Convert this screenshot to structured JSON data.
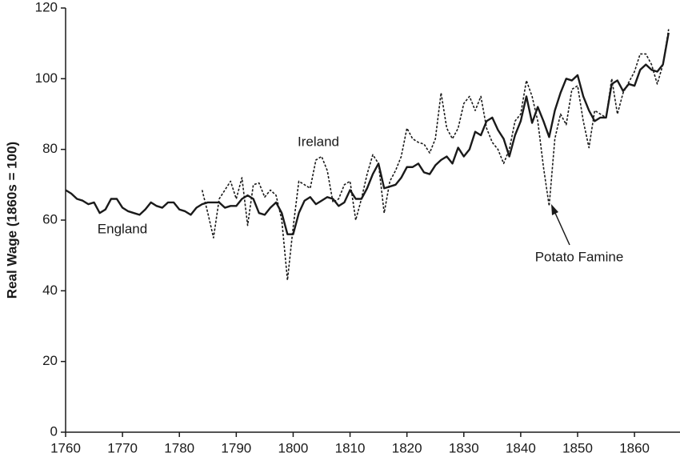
{
  "chart_data": {
    "type": "line",
    "ylabel": "Real Wage (1860s = 100)",
    "x": [
      1760,
      1761,
      1762,
      1763,
      1764,
      1765,
      1766,
      1767,
      1768,
      1769,
      1770,
      1771,
      1772,
      1773,
      1774,
      1775,
      1776,
      1777,
      1778,
      1779,
      1780,
      1781,
      1782,
      1783,
      1784,
      1785,
      1786,
      1787,
      1788,
      1789,
      1790,
      1791,
      1792,
      1793,
      1794,
      1795,
      1796,
      1797,
      1798,
      1799,
      1800,
      1801,
      1802,
      1803,
      1804,
      1805,
      1806,
      1807,
      1808,
      1809,
      1810,
      1811,
      1812,
      1813,
      1814,
      1815,
      1816,
      1817,
      1818,
      1819,
      1820,
      1821,
      1822,
      1823,
      1824,
      1825,
      1826,
      1827,
      1828,
      1829,
      1830,
      1831,
      1832,
      1833,
      1834,
      1835,
      1836,
      1837,
      1838,
      1839,
      1840,
      1841,
      1842,
      1843,
      1844,
      1845,
      1846,
      1847,
      1848,
      1849,
      1850,
      1851,
      1852,
      1853,
      1854,
      1855,
      1856,
      1857,
      1858,
      1859,
      1860,
      1861,
      1862,
      1863,
      1864,
      1865,
      1866
    ],
    "series": [
      {
        "name": "England",
        "color": "#1a1a1a",
        "dash": false,
        "values": [
          68.5,
          67.5,
          66,
          65.5,
          64.5,
          65,
          62,
          63,
          66,
          66,
          63.5,
          62.5,
          62,
          61.5,
          63,
          65,
          64,
          63.5,
          65,
          65,
          63,
          62.5,
          61.5,
          63.5,
          64.5,
          65,
          65,
          65,
          63.5,
          64,
          64,
          66,
          67,
          66,
          62,
          61.5,
          63.5,
          65,
          62,
          56,
          56,
          62,
          65.5,
          66.5,
          64.5,
          65.5,
          66.5,
          66,
          64,
          65,
          68.5,
          66,
          66,
          69,
          73,
          76,
          69,
          69.5,
          70,
          72,
          75,
          75,
          76,
          73.5,
          73,
          75.5,
          77,
          78,
          76,
          80.5,
          78,
          80,
          85,
          84,
          88,
          89,
          85.5,
          83,
          78,
          84,
          88,
          95,
          87.5,
          92,
          88,
          83.5,
          91,
          96,
          100,
          99.5,
          101,
          95,
          91,
          88,
          89,
          89,
          98.5,
          99.5,
          96.5,
          98.5,
          98,
          102.5,
          104,
          102.5,
          102,
          104,
          113
        ]
      },
      {
        "name": "Ireland",
        "color": "#1a1a1a",
        "dash": true,
        "values": [
          null,
          null,
          null,
          null,
          null,
          null,
          null,
          null,
          null,
          null,
          null,
          null,
          null,
          null,
          null,
          null,
          null,
          null,
          null,
          null,
          null,
          null,
          null,
          null,
          68.5,
          62,
          55,
          66,
          68.5,
          71,
          66,
          72,
          58.5,
          70,
          70.5,
          66.5,
          68.5,
          67,
          60,
          43,
          58,
          71,
          70,
          69,
          77,
          78,
          74,
          65,
          66,
          70,
          71,
          60,
          66,
          73,
          78.5,
          76,
          62,
          71,
          74,
          78,
          86,
          83,
          82,
          81.5,
          79,
          83,
          96,
          86,
          83,
          86,
          93,
          95,
          91,
          95,
          86,
          82,
          80,
          76,
          80,
          88,
          90,
          99.5,
          95,
          88,
          75,
          64,
          83,
          90,
          87,
          97,
          98,
          88,
          80.5,
          91,
          90,
          89,
          100,
          90,
          96,
          99,
          102,
          107,
          107,
          104,
          98.5,
          104,
          114
        ]
      }
    ],
    "annotations": [
      "Ireland",
      "England",
      "Potato Famine"
    ],
    "xlim": [
      1760,
      1868
    ],
    "xticks": [
      1760,
      1770,
      1780,
      1790,
      1800,
      1810,
      1820,
      1830,
      1840,
      1850,
      1860
    ],
    "ylim": [
      0,
      120
    ],
    "yticks": [
      0,
      20,
      40,
      60,
      80,
      100,
      120
    ]
  }
}
